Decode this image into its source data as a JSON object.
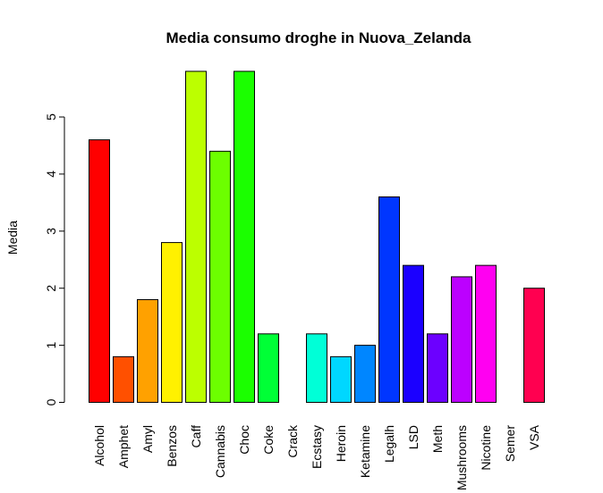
{
  "chart_data": {
    "type": "bar",
    "title": "Media consumo droghe in Nuova_Zelanda",
    "xlabel": "",
    "ylabel": "Media",
    "ylim": [
      0,
      5.8
    ],
    "yticks": [
      0,
      1,
      2,
      3,
      4,
      5
    ],
    "categories": [
      "Alcohol",
      "Amphet",
      "Amyl",
      "Benzos",
      "Caff",
      "Cannabis",
      "Choc",
      "Coke",
      "Crack",
      "Ecstasy",
      "Heroin",
      "Ketamine",
      "Legalh",
      "LSD",
      "Meth",
      "Mushrooms",
      "Nicotine",
      "Semer",
      "VSA"
    ],
    "values": [
      4.6,
      0.8,
      1.8,
      2.8,
      5.8,
      4.4,
      5.8,
      1.2,
      0,
      1.2,
      0.8,
      1.0,
      3.6,
      2.4,
      1.2,
      2.2,
      2.4,
      0,
      2.0
    ],
    "colors": [
      "#FF0000",
      "#FF5000",
      "#FFA100",
      "#FFF100",
      "#BCFF00",
      "#6CFF00",
      "#1BFF00",
      "#00FF36",
      "#00FF86",
      "#00FFD7",
      "#00D7FF",
      "#0086FF",
      "#0036FF",
      "#1B00FF",
      "#6C00FF",
      "#BC00FF",
      "#FF00F1",
      "#FF00A1",
      "#FF0050"
    ],
    "grid": false,
    "legend": "none"
  }
}
